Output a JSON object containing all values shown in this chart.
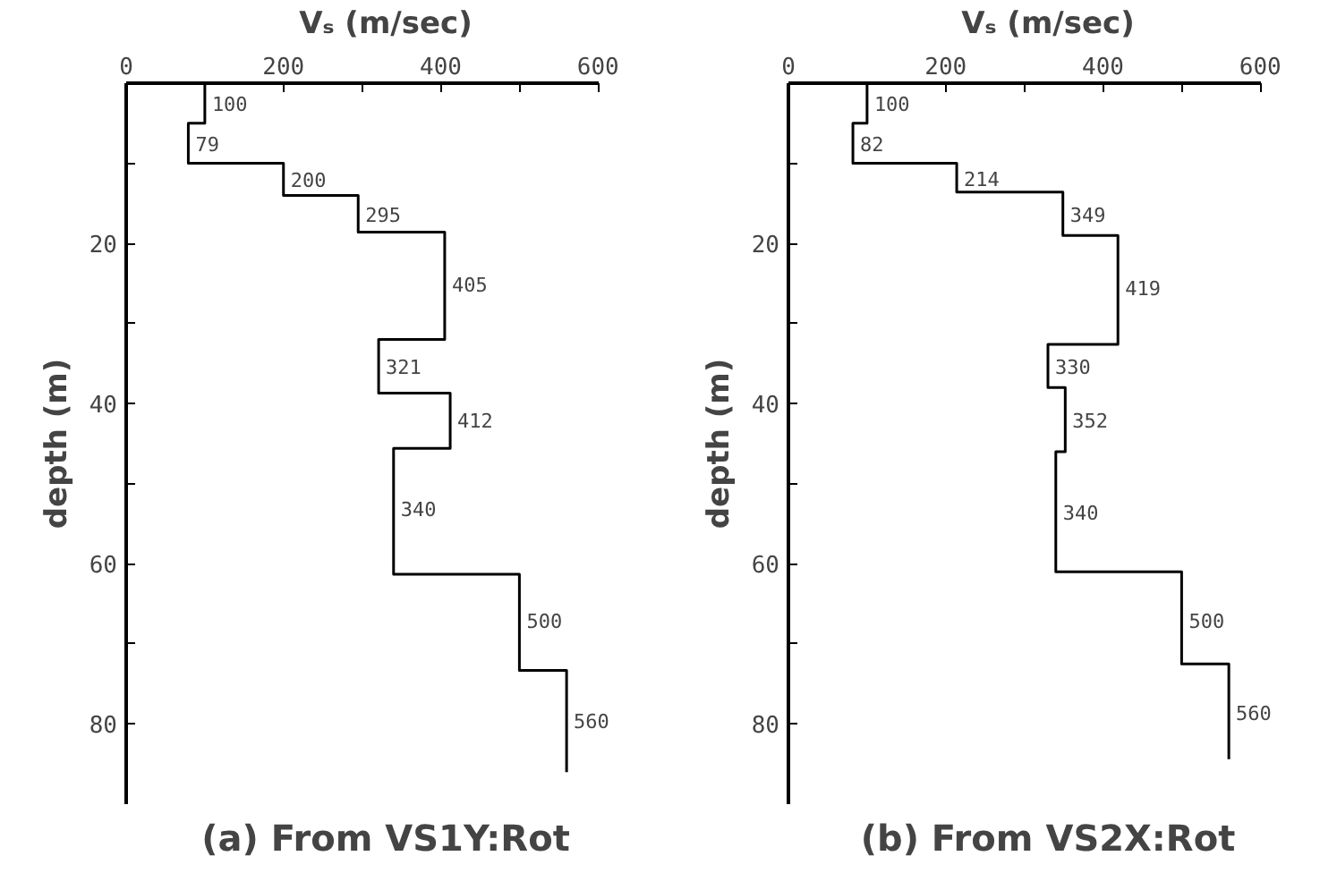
{
  "chart_data": [
    {
      "type": "line",
      "title": "(a) From VS1Y:Rot",
      "xlabel": "Vₛ (m/sec)",
      "ylabel": "depth (m)",
      "xlim": [
        0,
        600
      ],
      "xticks": [
        0,
        {
          "value": 100,
          "label": null
        },
        200,
        {
          "value": 300,
          "label": null
        },
        400,
        {
          "value": 500,
          "label": null
        },
        600
      ],
      "ylim": [
        90,
        0
      ],
      "yticks": [
        {
          "value": 10,
          "label": null
        },
        20,
        {
          "value": 30,
          "label": null
        },
        40,
        {
          "value": 50,
          "label": null
        },
        60,
        {
          "value": 70,
          "label": null
        },
        80
      ],
      "grid": false,
      "marker": "none",
      "line_style": "solid",
      "series": [
        {
          "color": "#000000",
          "x": [
            100,
            100,
            79,
            79,
            200,
            200,
            295,
            295,
            405,
            405,
            321,
            321,
            412,
            412,
            340,
            340,
            500,
            500,
            560,
            560
          ],
          "values": [
            0,
            5,
            5,
            10,
            10,
            14,
            14,
            18.6,
            18.6,
            32,
            32,
            38.7,
            38.7,
            45.6,
            45.6,
            61.3,
            61.3,
            73.3,
            73.3,
            86
          ]
        }
      ],
      "annotations": [
        {
          "text": "100",
          "x": 100,
          "y": 2.5
        },
        {
          "text": "79",
          "x": 79,
          "y": 7.5
        },
        {
          "text": "200",
          "x": 200,
          "y": 12
        },
        {
          "text": "295",
          "x": 295,
          "y": 16.3
        },
        {
          "text": "405",
          "x": 405,
          "y": 25
        },
        {
          "text": "321",
          "x": 321,
          "y": 35.3
        },
        {
          "text": "412",
          "x": 412,
          "y": 42
        },
        {
          "text": "340",
          "x": 340,
          "y": 53
        },
        {
          "text": "500",
          "x": 500,
          "y": 67
        },
        {
          "text": "560",
          "x": 560,
          "y": 79.5
        }
      ]
    },
    {
      "type": "line",
      "title": "(b) From VS2X:Rot",
      "xlabel": "Vₛ (m/sec)",
      "ylabel": "depth (m)",
      "xlim": [
        0,
        600
      ],
      "xticks": [
        0,
        {
          "value": 100,
          "label": null
        },
        200,
        {
          "value": 300,
          "label": null
        },
        400,
        {
          "value": 500,
          "label": null
        },
        600
      ],
      "ylim": [
        90,
        0
      ],
      "yticks": [
        {
          "value": 10,
          "label": null
        },
        20,
        {
          "value": 30,
          "label": null
        },
        40,
        {
          "value": 50,
          "label": null
        },
        60,
        {
          "value": 70,
          "label": null
        },
        80
      ],
      "grid": false,
      "marker": "none",
      "line_style": "solid",
      "series": [
        {
          "color": "#000000",
          "x": [
            100,
            100,
            82,
            82,
            214,
            214,
            349,
            349,
            419,
            419,
            330,
            330,
            352,
            352,
            340,
            340,
            500,
            500,
            560,
            560
          ],
          "values": [
            0,
            5,
            5,
            10,
            10,
            13.6,
            13.6,
            19,
            19,
            32.6,
            32.6,
            38,
            38,
            46,
            46,
            61,
            61,
            72.5,
            72.5,
            84.4
          ]
        }
      ],
      "annotations": [
        {
          "text": "100",
          "x": 100,
          "y": 2.5
        },
        {
          "text": "82",
          "x": 82,
          "y": 7.5
        },
        {
          "text": "214",
          "x": 214,
          "y": 11.8
        },
        {
          "text": "349",
          "x": 349,
          "y": 16.3
        },
        {
          "text": "419",
          "x": 419,
          "y": 25.5
        },
        {
          "text": "330",
          "x": 330,
          "y": 35.3
        },
        {
          "text": "352",
          "x": 352,
          "y": 42
        },
        {
          "text": "340",
          "x": 340,
          "y": 53.5
        },
        {
          "text": "500",
          "x": 500,
          "y": 67
        },
        {
          "text": "560",
          "x": 560,
          "y": 78.5
        }
      ]
    }
  ]
}
